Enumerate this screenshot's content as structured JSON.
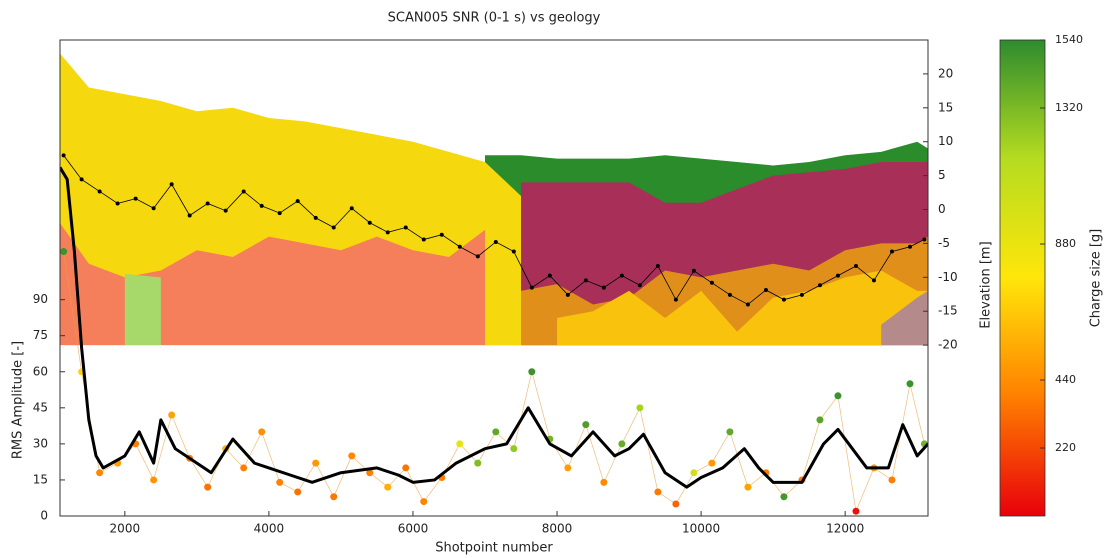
{
  "chart_data": {
    "type": "scatter",
    "title": "SCAN005 SNR (0-1 s) vs geology",
    "xlabel": "Shotpoint number",
    "ylabel": "RMS Amplitude [-]",
    "y2label": "Elevation [m]",
    "colorbar_label": "Charge size [g]",
    "xlim": [
      1100,
      13150
    ],
    "xticks": [
      2000,
      4000,
      6000,
      8000,
      10000,
      12000
    ],
    "ylim": [
      0,
      198
    ],
    "yticks": [
      0,
      15,
      30,
      45,
      60,
      75,
      90
    ],
    "y2lim": [
      -45.2,
      25
    ],
    "y2ticks": [
      -20,
      -15,
      -10,
      -5,
      0,
      5,
      10,
      15,
      20
    ],
    "clim": [
      0,
      1540
    ],
    "cticks": [
      220,
      440,
      880,
      1320,
      1540
    ],
    "colormap": [
      "#e8000b",
      "#ff7f00",
      "#ffe60a",
      "#b5dc20",
      "#2e8b2e"
    ],
    "x": [
      1100,
      1500,
      2000,
      2500,
      3000,
      3500,
      4000,
      4500,
      5000,
      5500,
      6000,
      6500,
      7000,
      7500,
      8000,
      8500,
      9000,
      9500,
      10000,
      10500,
      11000,
      11500,
      12000,
      12500,
      13000,
      13150
    ],
    "series": [
      {
        "type": "area",
        "axis": "y2",
        "color": "#2b8c2b",
        "values": [
          null,
          null,
          null,
          null,
          null,
          null,
          null,
          null,
          null,
          null,
          null,
          null,
          8,
          8,
          7.5,
          7.5,
          7.5,
          8,
          7.5,
          7,
          6.5,
          7,
          8,
          8.5,
          10,
          9
        ]
      },
      {
        "type": "area",
        "axis": "y2",
        "color": "#f6d80f",
        "values": [
          23,
          18,
          17,
          16,
          14.5,
          15,
          13.5,
          13,
          12,
          11,
          10,
          8.5,
          7,
          2,
          null,
          null,
          null,
          null,
          null,
          null,
          null,
          null,
          null,
          null,
          null,
          null
        ]
      },
      {
        "type": "area",
        "axis": "y2",
        "color": "#a83058",
        "values": [
          null,
          null,
          null,
          null,
          null,
          null,
          null,
          null,
          null,
          null,
          null,
          null,
          null,
          4,
          4,
          4,
          4,
          1,
          1,
          3,
          5,
          5.5,
          6,
          7,
          7,
          7
        ]
      },
      {
        "type": "area",
        "axis": "y2",
        "color": "#f47f5a",
        "values": [
          -2,
          -8,
          -10,
          -9,
          -6,
          -7,
          -4,
          -5,
          -6,
          -4,
          -6,
          -7,
          -3,
          null,
          null,
          null,
          null,
          null,
          null,
          null,
          null,
          null,
          null,
          null,
          null,
          null
        ]
      },
      {
        "type": "area",
        "axis": "y2",
        "color": "#a6d96a",
        "values": [
          null,
          null,
          -9.5,
          -10,
          null,
          null,
          null,
          null,
          null,
          null,
          null,
          null,
          null,
          null,
          null,
          null,
          null,
          null,
          null,
          null,
          null,
          null,
          null,
          null,
          null,
          null
        ]
      },
      {
        "type": "area",
        "axis": "y2",
        "color": "#e0901a",
        "values": [
          null,
          null,
          null,
          null,
          null,
          null,
          null,
          null,
          null,
          null,
          null,
          null,
          null,
          -12,
          -11,
          -14,
          -13,
          -9,
          -10,
          -9,
          -8,
          -9,
          -6,
          -5,
          -5,
          -4
        ]
      },
      {
        "type": "area",
        "axis": "y2",
        "color": "#f8c20d",
        "values": [
          null,
          null,
          null,
          null,
          null,
          null,
          null,
          null,
          null,
          null,
          null,
          null,
          null,
          null,
          -16,
          -15,
          -12,
          -16,
          -12,
          -18,
          -13,
          -12,
          -10,
          -9,
          -12,
          -12
        ]
      },
      {
        "type": "area",
        "axis": "y2",
        "color": "#b58a8a",
        "values": [
          null,
          null,
          null,
          null,
          null,
          null,
          null,
          null,
          null,
          null,
          null,
          null,
          null,
          null,
          null,
          null,
          null,
          null,
          null,
          null,
          null,
          null,
          null,
          -17,
          -13,
          -12
        ]
      },
      {
        "type": "scatter",
        "connect": true,
        "color": "#000000",
        "x": [
          1150,
          1400,
          1650,
          1900,
          2150,
          2400,
          2650,
          2900,
          3150,
          3400,
          3650,
          3900,
          4150,
          4400,
          4650,
          4900,
          5150,
          5400,
          5650,
          5900,
          6150,
          6400,
          6650,
          6900,
          7150,
          7400,
          7650,
          7900,
          8150,
          8400,
          8650,
          8900,
          9150,
          9400,
          9650,
          9900,
          10150,
          10400,
          10650,
          10900,
          11150,
          11400,
          11650,
          11900,
          12150,
          12400,
          12650,
          12900,
          13100
        ],
        "values": [
          150,
          140,
          135,
          130,
          132,
          128,
          138,
          125,
          130,
          127,
          135,
          129,
          126,
          131,
          124,
          120,
          128,
          122,
          118,
          120,
          115,
          117,
          112,
          108,
          114,
          110,
          95,
          100,
          92,
          98,
          95,
          100,
          96,
          104,
          90,
          102,
          97,
          92,
          88,
          94,
          90,
          92,
          96,
          100,
          104,
          98,
          110,
          112,
          115
        ]
      },
      {
        "type": "scatter",
        "connect": true,
        "color_by": "charge",
        "x": [
          1150,
          1400,
          1650,
          1900,
          2150,
          2400,
          2650,
          2900,
          3150,
          3400,
          3650,
          3900,
          4150,
          4400,
          4650,
          4900,
          5150,
          5400,
          5650,
          5900,
          6150,
          6400,
          6650,
          6900,
          7150,
          7400,
          7650,
          7900,
          8150,
          8400,
          8650,
          8900,
          9150,
          9400,
          9650,
          9900,
          10150,
          10400,
          10650,
          10900,
          11150,
          11400,
          11650,
          11900,
          12150,
          12400,
          12650,
          12900,
          13100
        ],
        "values": [
          110,
          60,
          18,
          22,
          30,
          15,
          42,
          24,
          12,
          28,
          20,
          35,
          14,
          10,
          22,
          8,
          25,
          18,
          12,
          20,
          6,
          16,
          30,
          22,
          35,
          28,
          60,
          32,
          20,
          38,
          14,
          30,
          45,
          10,
          5,
          18,
          22,
          35,
          12,
          18,
          8,
          15,
          40,
          50,
          2,
          20,
          15,
          55,
          30
        ],
        "charge": [
          1500,
          700,
          420,
          500,
          380,
          460,
          520,
          400,
          350,
          600,
          380,
          450,
          400,
          340,
          480,
          360,
          420,
          380,
          560,
          350,
          400,
          380,
          900,
          1300,
          1400,
          1250,
          1500,
          1350,
          500,
          1450,
          420,
          1380,
          1200,
          360,
          300,
          1000,
          480,
          1400,
          520,
          380,
          1480,
          360,
          1420,
          1500,
          50,
          460,
          380,
          1500,
          1350
        ]
      },
      {
        "type": "line",
        "color": "#000000",
        "x": [
          1100,
          1200,
          1300,
          1400,
          1500,
          1600,
          1700,
          2000,
          2200,
          2400,
          2500,
          2700,
          3000,
          3200,
          3500,
          3800,
          4000,
          4300,
          4600,
          5000,
          5500,
          5800,
          6000,
          6300,
          6600,
          7000,
          7300,
          7600,
          7900,
          8200,
          8500,
          8800,
          9000,
          9200,
          9500,
          9800,
          10000,
          10300,
          10600,
          10800,
          11000,
          11400,
          11700,
          11900,
          12100,
          12300,
          12600,
          12800,
          13000,
          13150
        ],
        "values": [
          145,
          140,
          110,
          70,
          40,
          25,
          20,
          25,
          35,
          22,
          40,
          28,
          22,
          18,
          32,
          22,
          20,
          17,
          14,
          18,
          20,
          17,
          14,
          15,
          22,
          28,
          30,
          45,
          30,
          25,
          35,
          25,
          28,
          34,
          18,
          12,
          16,
          20,
          28,
          20,
          14,
          14,
          30,
          36,
          28,
          20,
          20,
          38,
          25,
          30
        ]
      }
    ]
  }
}
